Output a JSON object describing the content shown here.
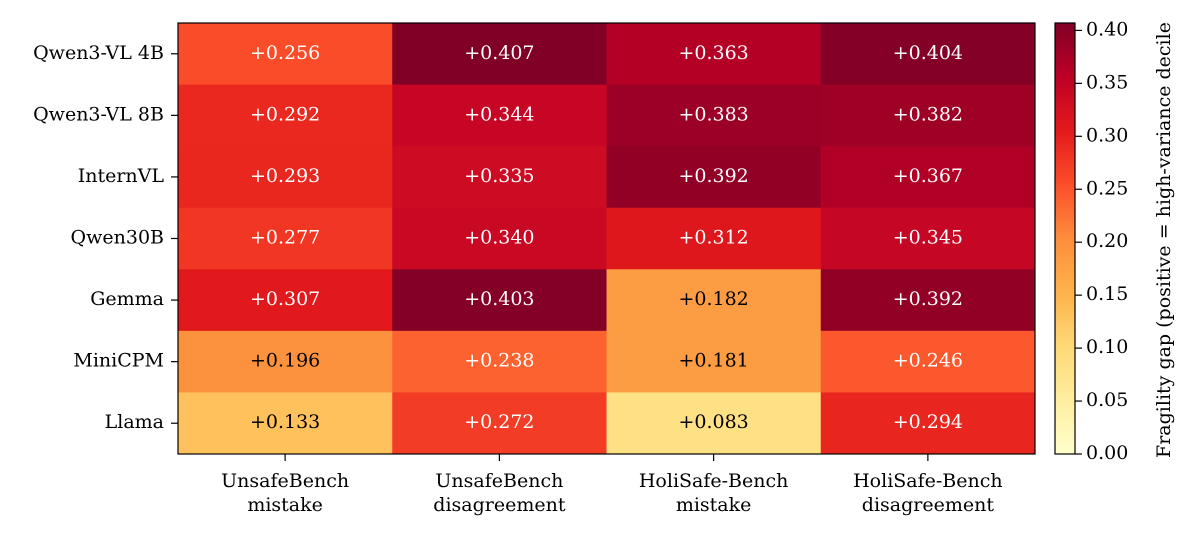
{
  "chart_data": {
    "type": "heatmap",
    "categories": [
      "UnsafeBench\nmistake",
      "UnsafeBench\ndisagreement",
      "HoliSafe-Bench\nmistake",
      "HoliSafe-Bench\ndisagreement"
    ],
    "rows": [
      "Qwen3-VL 4B",
      "Qwen3-VL 8B",
      "InternVL",
      "Qwen30B",
      "Gemma",
      "MiniCPM",
      "Llama"
    ],
    "values": [
      [
        0.256,
        0.407,
        0.363,
        0.404
      ],
      [
        0.292,
        0.344,
        0.383,
        0.382
      ],
      [
        0.293,
        0.335,
        0.392,
        0.367
      ],
      [
        0.277,
        0.34,
        0.312,
        0.345
      ],
      [
        0.307,
        0.403,
        0.182,
        0.392
      ],
      [
        0.196,
        0.238,
        0.181,
        0.246
      ],
      [
        0.133,
        0.272,
        0.083,
        0.294
      ]
    ],
    "value_labels": [
      [
        "+0.256",
        "+0.407",
        "+0.363",
        "+0.404"
      ],
      [
        "+0.292",
        "+0.344",
        "+0.383",
        "+0.382"
      ],
      [
        "+0.293",
        "+0.335",
        "+0.392",
        "+0.367"
      ],
      [
        "+0.277",
        "+0.340",
        "+0.312",
        "+0.345"
      ],
      [
        "+0.307",
        "+0.403",
        "+0.182",
        "+0.392"
      ],
      [
        "+0.196",
        "+0.238",
        "+0.181",
        "+0.246"
      ],
      [
        "+0.133",
        "+0.272",
        "+0.083",
        "+0.294"
      ]
    ],
    "colormap": [
      "#ffffcc",
      "#ffeda0",
      "#fed976",
      "#feb24c",
      "#fd8d3c",
      "#fc4e2a",
      "#e31a1c",
      "#bd0026",
      "#800026"
    ],
    "zlim": [
      0,
      0.407
    ],
    "zticks": [
      {
        "value": 0,
        "label": "0.00"
      },
      {
        "value": 0.05,
        "label": "0.05"
      },
      {
        "value": 0.1,
        "label": "0.10"
      },
      {
        "value": 0.15,
        "label": "0.15"
      },
      {
        "value": 0.2,
        "label": "0.20"
      },
      {
        "value": 0.25,
        "label": "0.25"
      },
      {
        "value": 0.3,
        "label": "0.30"
      },
      {
        "value": 0.35,
        "label": "0.35"
      },
      {
        "value": 0.4,
        "label": "0.40"
      }
    ],
    "colorbar_label": "Fragility gap (positive = high-variance decile"
  }
}
